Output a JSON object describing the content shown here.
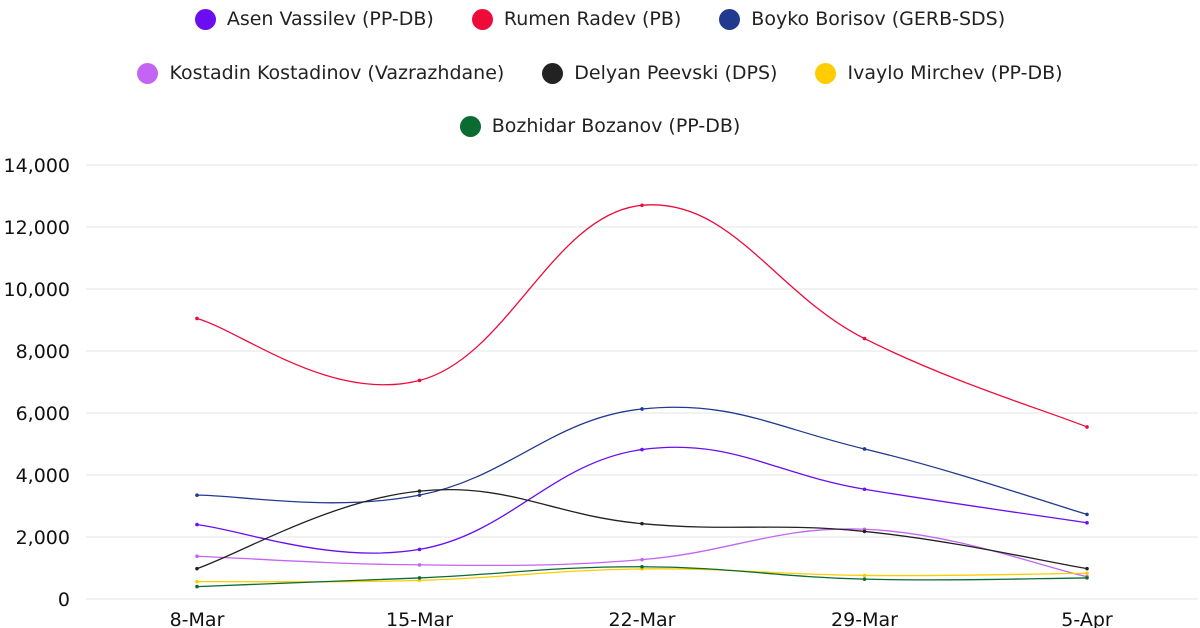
{
  "chart_data": {
    "type": "line",
    "title": "",
    "xlabel": "",
    "ylabel": "",
    "categories": [
      "8-Mar",
      "15-Mar",
      "22-Mar",
      "29-Mar",
      "5-Apr"
    ],
    "ylim": [
      0,
      14000
    ],
    "yticks": [
      0,
      2000,
      4000,
      6000,
      8000,
      10000,
      12000,
      14000
    ],
    "ytick_labels": [
      "0",
      "2,000",
      "4,000",
      "6,000",
      "8,000",
      "10,000",
      "12,000",
      "14,000"
    ],
    "grid": true,
    "legend_position": "top",
    "series": [
      {
        "name": "Asen Vassilev (PP-DB)",
        "color": "#6a0df0",
        "values": [
          2400,
          1600,
          4820,
          3540,
          2460
        ]
      },
      {
        "name": "Rumen Radev (PB)",
        "color": "#ee0b3a",
        "values": [
          9050,
          7050,
          12700,
          8400,
          5550
        ]
      },
      {
        "name": "Boyko Borisov (GERB-SDS)",
        "color": "#213a8f",
        "values": [
          3350,
          3350,
          6130,
          4840,
          2730
        ]
      },
      {
        "name": "Kostadin Kostadinov (Vazrazhdane)",
        "color": "#c365f2",
        "values": [
          1380,
          1100,
          1270,
          2250,
          720
        ]
      },
      {
        "name": "Delyan Peevski (DPS)",
        "color": "#222222",
        "values": [
          980,
          3480,
          2430,
          2180,
          980
        ]
      },
      {
        "name": "Ivaylo Mirchev (PP-DB)",
        "color": "#ffcc00",
        "values": [
          560,
          600,
          970,
          760,
          830
        ]
      },
      {
        "name": "Bozhidar Bozanov (PP-DB)",
        "color": "#0b6b32",
        "values": [
          400,
          680,
          1040,
          640,
          680
        ]
      }
    ]
  }
}
